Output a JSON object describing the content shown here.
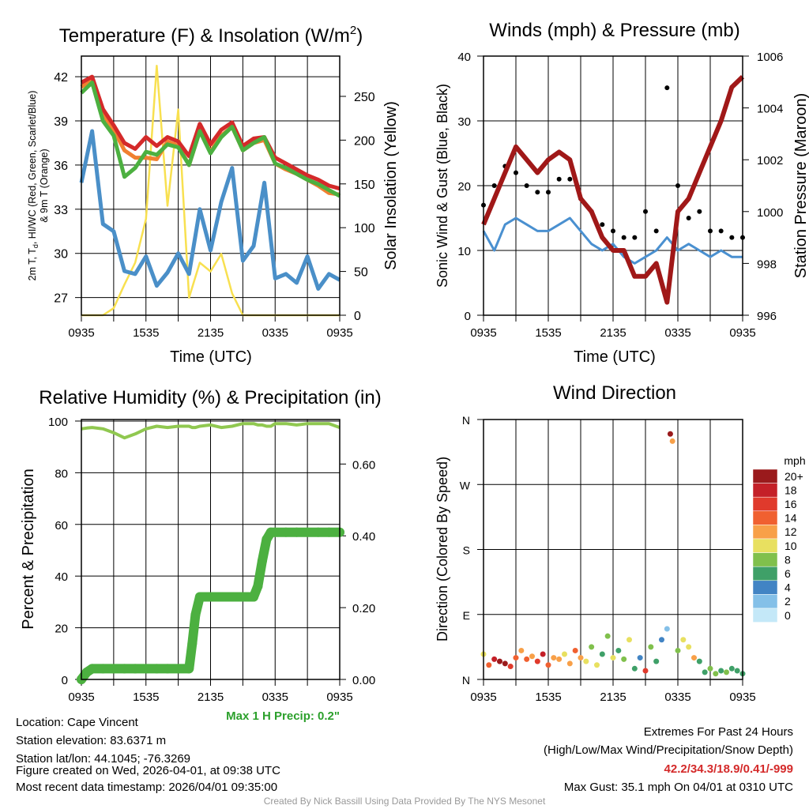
{
  "chart_data": [
    {
      "type": "line",
      "title": "Temperature (F) & Insolation (W/m",
      "title_sup": "2",
      "title_end": ")",
      "xlabel": "Time (UTC)",
      "ylabel_line1": "2m T, T",
      "ylabel_sub": "d",
      "ylabel_line1_end": ", HI/WC (Red, Green, Scarlet/Blue)",
      "ylabel_line2": "& 9m T (Orange)",
      "y2label": "Solar Insolation (Yellow)",
      "xticks": [
        "0935",
        "1535",
        "2135",
        "0335",
        "0935"
      ],
      "yticks": [
        27,
        30,
        33,
        36,
        39,
        42
      ],
      "y2ticks": [
        0,
        50,
        100,
        150,
        200,
        250
      ],
      "ylim": [
        25.8,
        43.4
      ],
      "y2lim": [
        0,
        296
      ],
      "x_hours": [
        0,
        1,
        2,
        3,
        4,
        5,
        6,
        7,
        8,
        9,
        10,
        11,
        12,
        13,
        14,
        15,
        16,
        17,
        18,
        19,
        20,
        21,
        22,
        23,
        24
      ],
      "series": [
        {
          "name": "2m T",
          "color": "#d42a2a",
          "values": [
            41.6,
            42.0,
            39.8,
            38.7,
            37.5,
            37.1,
            37.9,
            37.3,
            37.9,
            37.6,
            36.6,
            38.8,
            37.4,
            38.4,
            38.9,
            37.3,
            37.8,
            37.9,
            36.5,
            36.1,
            35.7,
            35.3,
            35.0,
            34.6,
            34.4
          ]
        },
        {
          "name": "9m T",
          "color": "#f08030",
          "values": [
            41.3,
            41.8,
            39.5,
            38.4,
            37.0,
            36.5,
            36.5,
            36.4,
            37.6,
            37.3,
            36.0,
            38.3,
            36.9,
            38.0,
            38.6,
            37.0,
            37.5,
            37.7,
            36.1,
            35.7,
            35.4,
            35.0,
            34.6,
            34.1,
            34.0
          ]
        },
        {
          "name": "HI/WC",
          "color": "#4cb040",
          "values": [
            40.9,
            41.6,
            39.0,
            38.0,
            35.2,
            35.8,
            36.9,
            36.7,
            37.4,
            37.2,
            36.0,
            38.3,
            36.8,
            37.9,
            38.6,
            37.0,
            37.5,
            37.9,
            36.1,
            35.8,
            35.4,
            35.0,
            34.7,
            34.3,
            33.9
          ]
        },
        {
          "name": "Td",
          "color": "#4a8fc8",
          "values": [
            34.8,
            38.3,
            32.0,
            31.5,
            28.8,
            28.6,
            29.8,
            27.8,
            28.7,
            30.0,
            28.6,
            33.0,
            30.2,
            33.5,
            35.8,
            29.5,
            30.5,
            34.8,
            28.3,
            28.6,
            28.0,
            29.8,
            27.6,
            28.6,
            28.2
          ]
        },
        {
          "name": "Solar",
          "color": "#f8e050",
          "axis": "y2",
          "values": [
            0,
            0,
            0,
            8,
            35,
            60,
            110,
            285,
            125,
            235,
            20,
            60,
            50,
            70,
            25,
            0,
            0,
            0,
            0,
            0,
            0,
            0,
            0,
            0,
            0
          ]
        }
      ]
    },
    {
      "type": "line",
      "title": "Winds (mph) & Pressure (mb)",
      "xlabel": "Time (UTC)",
      "ylabel": "Sonic Wind & Gust (Blue, Black)",
      "y2label": "Station Pressure (Maroon)",
      "xticks": [
        "0935",
        "1535",
        "2135",
        "0335",
        "0935"
      ],
      "yticks": [
        0,
        10,
        20,
        30,
        40
      ],
      "y2ticks": [
        996,
        998,
        1000,
        1002,
        1004,
        1006
      ],
      "ylim": [
        0,
        40
      ],
      "y2lim": [
        996,
        1006
      ],
      "x_hours": [
        0,
        1,
        2,
        3,
        4,
        5,
        6,
        7,
        8,
        9,
        10,
        11,
        12,
        13,
        14,
        15,
        16,
        17,
        18,
        19,
        20,
        21,
        22,
        23,
        24
      ],
      "series": [
        {
          "name": "Sonic Wind",
          "color": "#4a90d0",
          "values": [
            13,
            10,
            14,
            15,
            14,
            13,
            13,
            14,
            15,
            13,
            11,
            10,
            11,
            9,
            8,
            9,
            10,
            12,
            10,
            11,
            10,
            9,
            10,
            9,
            9
          ]
        },
        {
          "name": "Gust",
          "color": "#000000",
          "marker": "dot",
          "values": [
            17,
            20,
            23,
            22,
            20,
            19,
            19,
            21,
            21,
            18,
            16,
            14,
            13,
            12,
            12,
            16,
            13,
            35.1,
            20,
            15,
            16,
            13,
            13,
            12,
            12
          ]
        },
        {
          "name": "Pressure",
          "color": "#a01818",
          "axis": "y2",
          "values": [
            999.5,
            1000.5,
            1001.5,
            1002.5,
            1002,
            1001.5,
            1002,
            1002.3,
            1002,
            1000.5,
            1000,
            999,
            998.5,
            998.5,
            997.5,
            997.5,
            998,
            996.5,
            1000,
            1000.5,
            1001.5,
            1002.5,
            1003.5,
            1004.8,
            1005.2
          ]
        }
      ]
    },
    {
      "type": "line",
      "title": "Relative Humidity (%) & Precipitation (in)",
      "ylabel": "Percent & Precipitation",
      "xticks": [
        "0935",
        "1535",
        "2135",
        "0335",
        "0935"
      ],
      "yticks": [
        0,
        20,
        40,
        60,
        80,
        100
      ],
      "y2ticks": [
        "0.00",
        "0.20",
        "0.40",
        "0.60"
      ],
      "ylim": [
        0,
        100.6
      ],
      "y2lim": [
        0,
        0.724
      ],
      "x_hours": [
        0,
        0.5,
        1,
        2,
        3,
        4,
        5,
        6,
        7,
        8,
        9,
        10,
        10.3,
        10.6,
        11,
        12,
        13,
        14,
        15,
        16,
        16.4,
        16.8,
        17.2,
        17.6,
        18,
        19,
        20,
        21,
        22,
        23,
        24
      ],
      "series": [
        {
          "name": "RH",
          "color": "#90c850",
          "values": [
            97,
            97.3,
            97.5,
            97,
            95.5,
            93.5,
            95,
            97,
            98,
            97.5,
            98,
            98,
            97.5,
            97.5,
            98,
            98.5,
            97.5,
            98,
            99,
            99,
            98.5,
            98.5,
            98,
            98,
            99,
            99,
            98.5,
            99,
            99,
            99,
            97.5
          ]
        },
        {
          "name": "Precipitation",
          "color": "#4cb040",
          "axis": "y2",
          "marker": "dot",
          "values": [
            0,
            0.02,
            0.03,
            0.03,
            0.03,
            0.03,
            0.03,
            0.03,
            0.03,
            0.03,
            0.03,
            0.03,
            0.1,
            0.18,
            0.23,
            0.23,
            0.23,
            0.23,
            0.23,
            0.23,
            0.26,
            0.33,
            0.39,
            0.41,
            0.41,
            0.41,
            0.41,
            0.41,
            0.41,
            0.41,
            0.41
          ]
        }
      ],
      "annotation": "Max 1 H Precip: 0.2\""
    },
    {
      "type": "scatter",
      "title": "Wind Direction",
      "ylabel": "Direction (Colored By Speed)",
      "xticks": [
        "0935",
        "1535",
        "2135",
        "0335",
        "0935"
      ],
      "yticks": [
        "N",
        "E",
        "S",
        "W",
        "N"
      ],
      "ylim": [
        0,
        360
      ],
      "x_hours": [
        0,
        0.5,
        1,
        1.5,
        2,
        2.5,
        3,
        3.5,
        4,
        4.5,
        5,
        5.5,
        6,
        6.5,
        7,
        7.5,
        8,
        8.5,
        9,
        9.5,
        10,
        10.5,
        11,
        11.5,
        12,
        12.5,
        13,
        13.5,
        14,
        14.5,
        15,
        15.5,
        16,
        16.5,
        17,
        17.3,
        17.5,
        18,
        18.5,
        19,
        19.5,
        20,
        20.5,
        21,
        21.5,
        22,
        22.5,
        23,
        23.5,
        24
      ],
      "direction_deg": [
        35,
        20,
        28,
        25,
        22,
        18,
        30,
        40,
        28,
        32,
        25,
        35,
        20,
        30,
        28,
        35,
        22,
        40,
        30,
        25,
        45,
        20,
        35,
        60,
        30,
        40,
        28,
        55,
        15,
        30,
        12,
        45,
        25,
        55,
        70,
        340,
        330,
        40,
        55,
        45,
        30,
        25,
        10,
        15,
        8,
        12,
        10,
        15,
        12,
        8
      ],
      "speed_mph": [
        10,
        15,
        18,
        20,
        20,
        16,
        14,
        12,
        14,
        12,
        16,
        18,
        14,
        12,
        12,
        10,
        12,
        14,
        12,
        10,
        8,
        10,
        6,
        8,
        10,
        6,
        8,
        10,
        6,
        4,
        16,
        8,
        6,
        4,
        2,
        22,
        12,
        8,
        10,
        10,
        12,
        6,
        6,
        8,
        8,
        6,
        8,
        6,
        6,
        6
      ],
      "colorbar": {
        "title": "mph",
        "labels": [
          "20+",
          "18",
          "16",
          "14",
          "12",
          "10",
          "8",
          "6",
          "4",
          "2",
          "0"
        ],
        "colors": [
          "#9a1a1c",
          "#c42028",
          "#e03a2c",
          "#f06030",
          "#f8a048",
          "#e8e060",
          "#80c04c",
          "#3fa068",
          "#4284c4",
          "#84c0e8",
          "#c4e8f8"
        ]
      }
    }
  ],
  "info": {
    "location": "Location: Cape Vincent",
    "elevation": "Station elevation: 83.6371 m",
    "latlon": "Station lat/lon: 44.1045; -76.3269",
    "created": "Figure created on Wed, 2026-04-01, at 09:38 UTC",
    "timestamp": "Most recent data timestamp: 2026/04/01 09:35:00"
  },
  "extremes": {
    "title": "Extremes For Past 24 Hours",
    "subtitle": "(High/Low/Max Wind/Precipitation/Snow Depth)",
    "values": "42.2/34.3/18.9/0.41/-999",
    "max_gust": "Max Gust: 35.1 mph On 04/01 at 0310 UTC",
    "values_color": "#d42a2a"
  },
  "credit": "Created By Nick Bassill Using Data Provided By The NYS Mesonet"
}
